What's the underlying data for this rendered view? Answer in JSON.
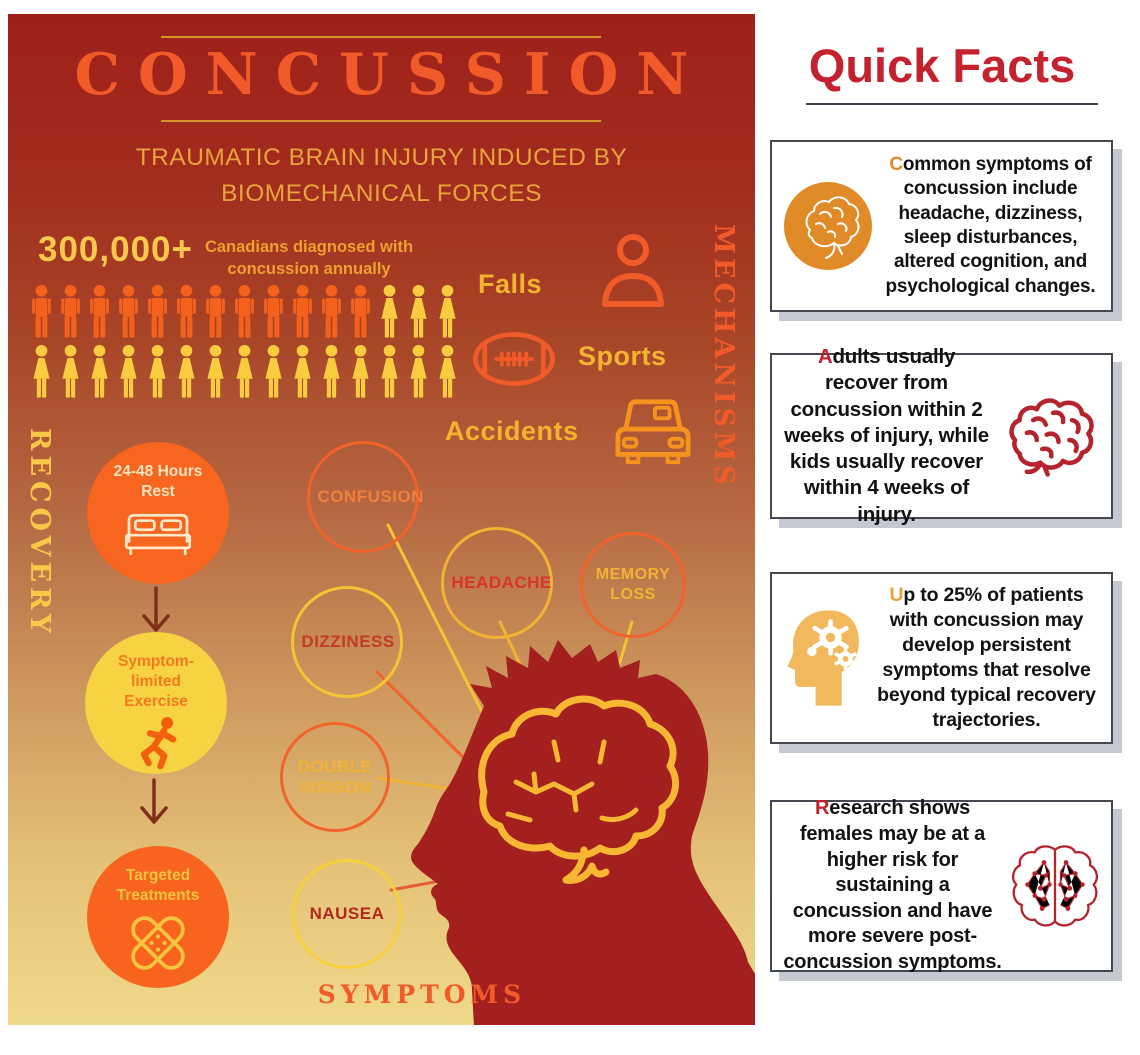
{
  "poster": {
    "title": "CONCUSSION",
    "subtitle_lines": [
      "TRAUMATIC BRAIN INJURY INDUCED BY",
      "BIOMECHANICAL FORCES"
    ],
    "stat": {
      "number": "300,000+",
      "label": "Canadians diagnosed with concussion annually"
    },
    "pictograph": {
      "rows": [
        [
          {
            "type": "male",
            "icon": "male-figure",
            "color": "#f4611d",
            "count": 12
          },
          {
            "type": "female",
            "icon": "female-figure",
            "color": "#f9cc3f",
            "count": 3
          }
        ],
        [
          {
            "type": "female",
            "icon": "female-figure",
            "color": "#f9cc3f",
            "count": 15
          }
        ]
      ]
    },
    "mechanisms": {
      "heading": "MECHANISMS",
      "items": [
        {
          "label": "Falls",
          "icon": "person-outline"
        },
        {
          "label": "Sports",
          "icon": "football"
        },
        {
          "label": "Accidents",
          "icon": "car"
        }
      ]
    },
    "recovery": {
      "heading": "RECOVERY",
      "steps": [
        {
          "label": "24-48 Hours Rest",
          "icon": "bed"
        },
        {
          "label": "Symptom-limited Exercise",
          "icon": "runner"
        },
        {
          "label": "Targeted Treatments",
          "icon": "crossed-bandages"
        }
      ]
    },
    "symptoms": {
      "heading": "SYMPTOMS",
      "items": [
        "CONFUSION",
        "HEADACHE",
        "MEMORY LOSS",
        "DIZZINESS",
        "DOUBLE VISISON",
        "NAUSEA"
      ]
    },
    "colors": {
      "background_top": "#9e2019",
      "background_bottom": "#f0d98b",
      "title_orange": "#f15a29",
      "gold": "#e8a43c",
      "yellow": "#f9cc3f",
      "head_silhouette": "#a3201e",
      "brain_outline": "#f5b32b"
    }
  },
  "quick_facts": {
    "title": "Quick Facts",
    "title_color": "#c5222f",
    "facts": [
      {
        "lead": "C",
        "lead_color": "#e08a28",
        "icon": "brain-circle",
        "rest": "ommon symptoms of concussion include headache, dizziness, sleep disturbances, altered cognition, and psychological changes."
      },
      {
        "lead": "A",
        "lead_color": "#c5212e",
        "icon": "side-brain",
        "rest": "dults usually recover from concussion within 2 weeks of injury, while kids usually recover within 4 weeks of injury."
      },
      {
        "lead": "U",
        "lead_color": "#e8a33c",
        "icon": "head-gears",
        "rest": "p to 25% of patients with concussion may develop persistent symptoms that resolve beyond typical recovery trajectories."
      },
      {
        "lead": "R",
        "lead_color": "#c5212e",
        "icon": "brain-network",
        "rest": "esearch shows females may be at a higher risk for sustaining a concussion and have more severe post-concussion symptoms."
      }
    ]
  }
}
